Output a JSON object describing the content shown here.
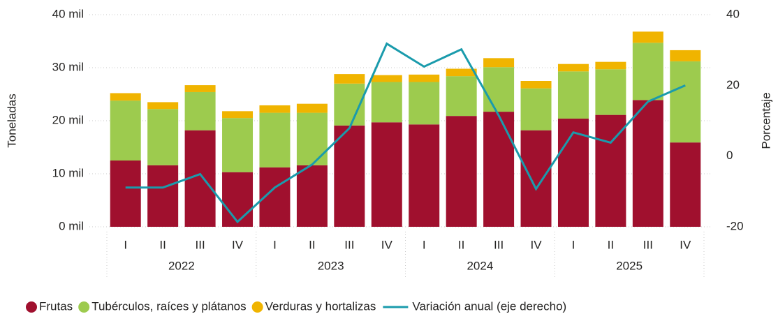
{
  "chart_data": {
    "type": "bar",
    "stacked": true,
    "categories": [
      "I",
      "II",
      "III",
      "IV",
      "I",
      "II",
      "III",
      "IV",
      "I",
      "II",
      "III",
      "IV",
      "I",
      "II",
      "III",
      "IV"
    ],
    "groups": [
      "2022",
      "2023",
      "2024",
      "2025"
    ],
    "ylabel": "Toneladas",
    "y2label": "Porcentaje",
    "ylim": [
      0,
      40000
    ],
    "yticks": [
      {
        "value": 0,
        "label": "0 mil"
      },
      {
        "value": 10000,
        "label": "10 mil"
      },
      {
        "value": 20000,
        "label": "20 mil"
      },
      {
        "value": 30000,
        "label": "30 mil"
      },
      {
        "value": 40000,
        "label": "40 mil"
      }
    ],
    "y2lim": [
      -20,
      40
    ],
    "y2ticks": [
      -20,
      0,
      20,
      40
    ],
    "grid": true,
    "legend": "bottom",
    "series": [
      {
        "name": "Frutas",
        "color": "#a0102e",
        "values": [
          12500,
          11600,
          18200,
          10300,
          11200,
          11600,
          19100,
          19700,
          19300,
          20900,
          21700,
          18200,
          20400,
          21100,
          23900,
          15900
        ]
      },
      {
        "name": "Tubérculos, raíces y plátanos",
        "color": "#9dcb4e",
        "values": [
          11300,
          10600,
          7200,
          10200,
          10300,
          9900,
          7900,
          7600,
          8000,
          7500,
          8400,
          7900,
          8900,
          8600,
          10800,
          15300
        ]
      },
      {
        "name": "Verduras y hortalizas",
        "color": "#f0b400",
        "values": [
          1400,
          1300,
          1300,
          1300,
          1400,
          1700,
          1800,
          1300,
          1400,
          1400,
          1700,
          1400,
          1400,
          1400,
          2100,
          2100
        ]
      },
      {
        "name": "Variación anual (eje derecho)",
        "color": "#1a9bac",
        "type": "line",
        "axis": "y2",
        "values": [
          -8.9,
          -8.9,
          -5.1,
          -18.6,
          -8.9,
          -2.4,
          7.9,
          31.8,
          25.3,
          30.2,
          11.5,
          -9.3,
          6.7,
          3.8,
          15.4,
          20.0
        ]
      }
    ]
  }
}
